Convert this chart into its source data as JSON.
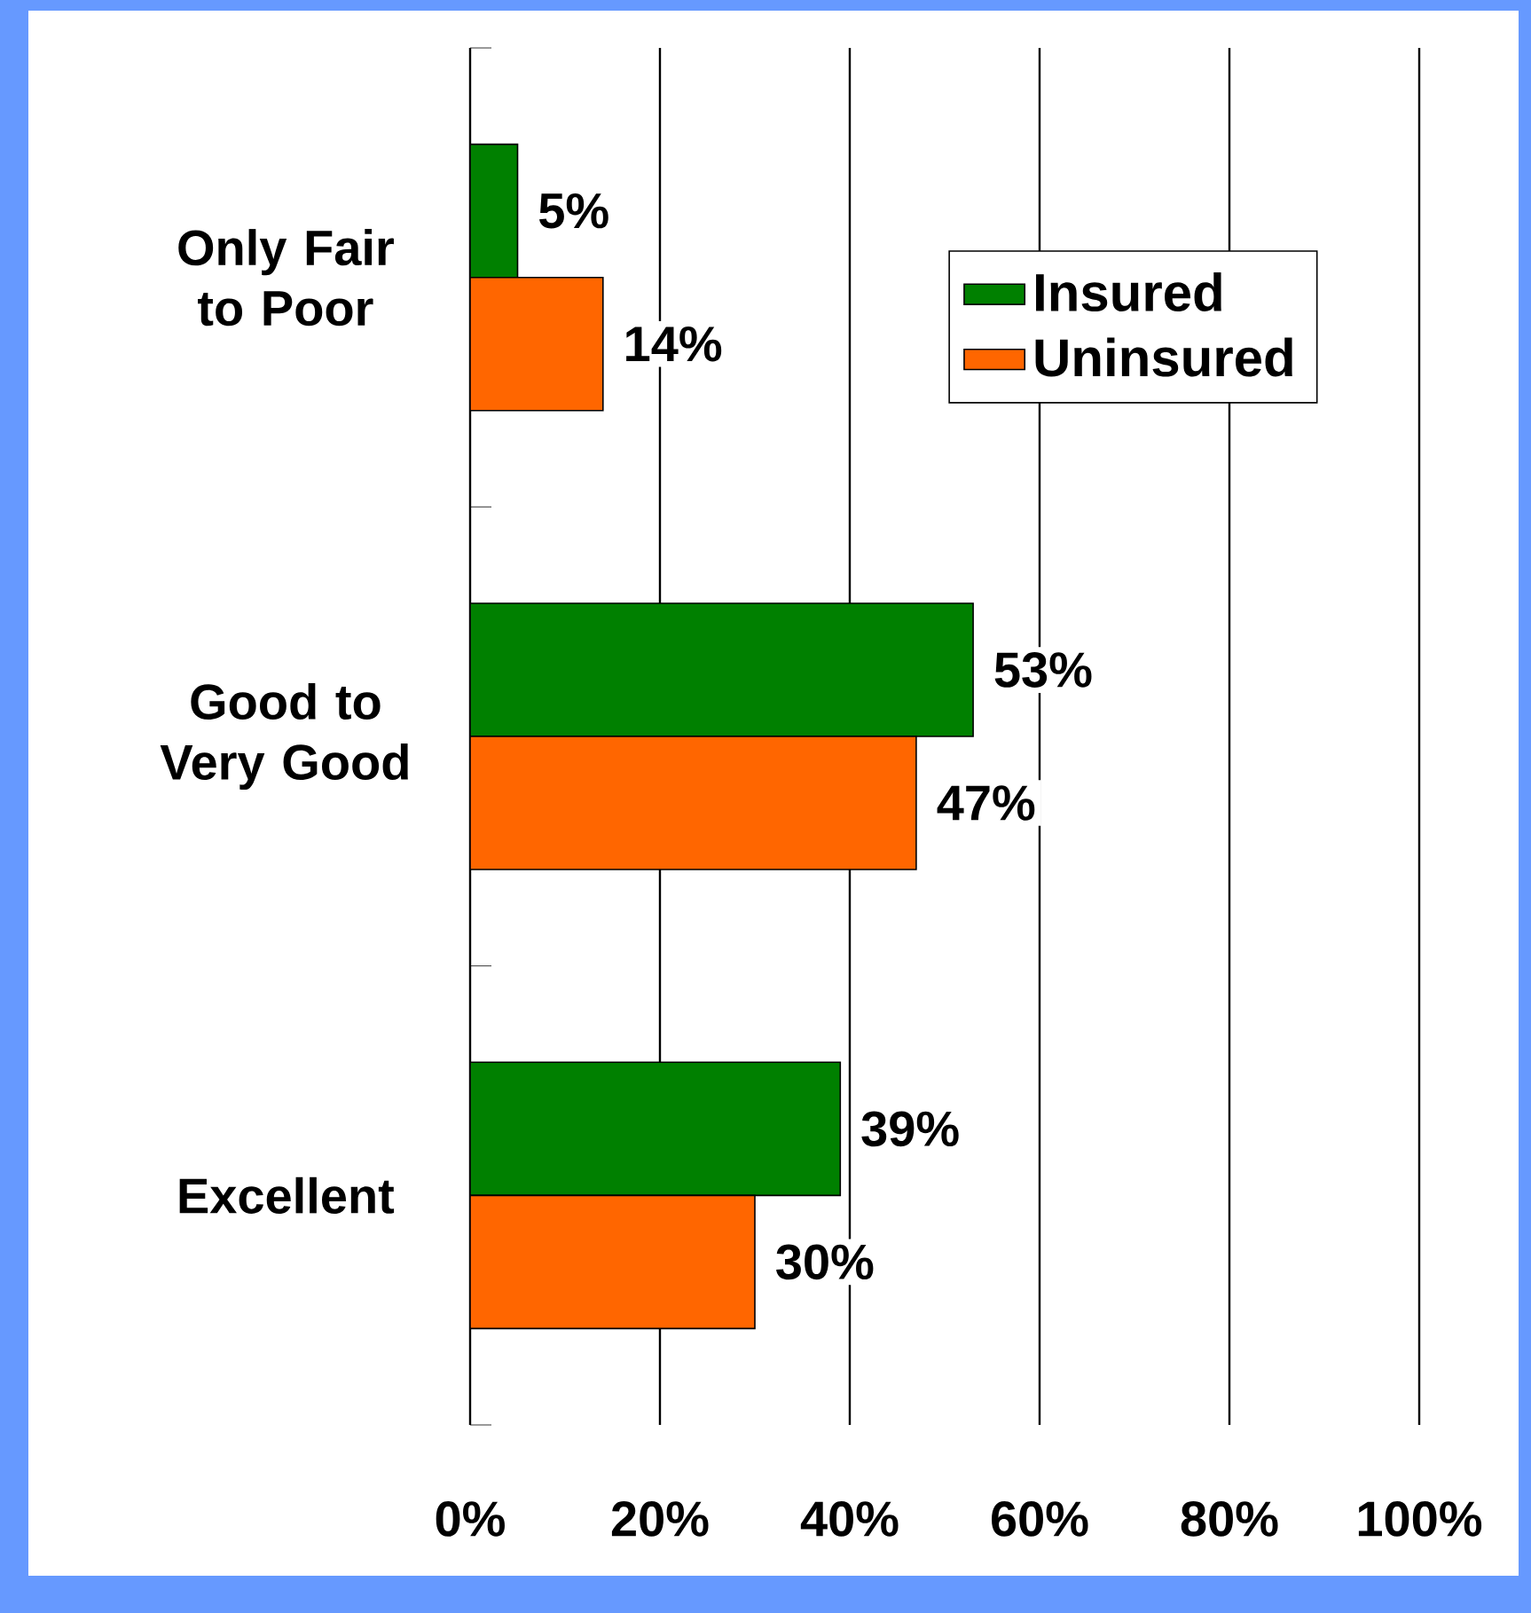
{
  "chart_data": {
    "type": "bar",
    "orientation": "horizontal",
    "categories": [
      "Only Fair to Poor",
      "Good to Very Good",
      "Excellent"
    ],
    "series": [
      {
        "name": "Insured",
        "color": "#008000",
        "values": [
          5,
          53,
          39
        ],
        "value_labels": [
          "5%",
          "53%",
          "39%"
        ]
      },
      {
        "name": "Uninsured",
        "color": "#ff6600",
        "values": [
          14,
          47,
          30
        ],
        "value_labels": [
          "14%",
          "47%",
          "30%"
        ]
      }
    ],
    "xlim": [
      0,
      100
    ],
    "xticks": [
      {
        "value": 0,
        "label": "0%"
      },
      {
        "value": 20,
        "label": "20%"
      },
      {
        "value": 40,
        "label": "40%"
      },
      {
        "value": 60,
        "label": "60%"
      },
      {
        "value": 80,
        "label": "80%"
      },
      {
        "value": 100,
        "label": "100%"
      }
    ],
    "grid": "x",
    "legend": "top right"
  }
}
